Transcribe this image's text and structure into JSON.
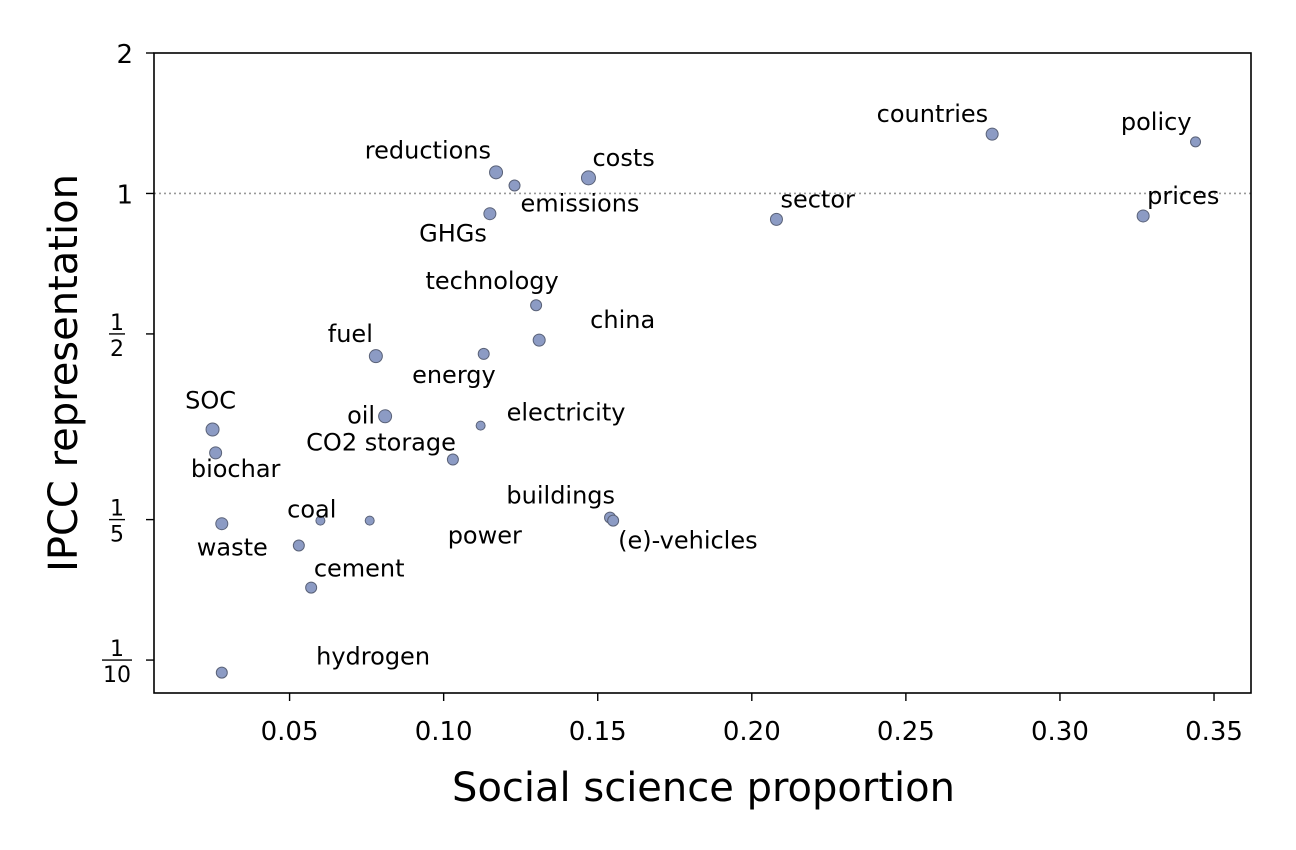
{
  "chart_data": {
    "type": "scatter",
    "xlabel": "Social science proportion",
    "ylabel": "IPCC representation",
    "xlim": [
      0.006,
      0.362
    ],
    "ylim": [
      0.085,
      2.0
    ],
    "y_scale": "log",
    "x_ticks": [
      {
        "value": 0.05,
        "label": "0.05"
      },
      {
        "value": 0.1,
        "label": "0.10"
      },
      {
        "value": 0.15,
        "label": "0.15"
      },
      {
        "value": 0.2,
        "label": "0.20"
      },
      {
        "value": 0.25,
        "label": "0.25"
      },
      {
        "value": 0.3,
        "label": "0.30"
      },
      {
        "value": 0.35,
        "label": "0.35"
      }
    ],
    "y_ticks": [
      {
        "value": 2,
        "label": "2"
      },
      {
        "value": 1,
        "label": "1"
      },
      {
        "value": 0.5,
        "num": "1",
        "den": "2"
      },
      {
        "value": 0.2,
        "num": "1",
        "den": "5"
      },
      {
        "value": 0.1,
        "num": "1",
        "den": "10"
      }
    ],
    "reference_line": {
      "y": 1,
      "style": "dotted",
      "color": "#999999"
    },
    "point_color": "#8c9bc4",
    "point_edge_color": "#5a6278",
    "points": [
      {
        "label": "countries",
        "x": 0.278,
        "y": 1.34,
        "size": 6,
        "anchor": "end",
        "ldx": -4,
        "ldy": -12
      },
      {
        "label": "policy",
        "x": 0.344,
        "y": 1.29,
        "size": 5,
        "anchor": "end",
        "ldx": -4,
        "ldy": -12
      },
      {
        "label": "reductions",
        "x": 0.117,
        "y": 1.11,
        "size": 6.5,
        "anchor": "end",
        "ldx": -5,
        "ldy": -14
      },
      {
        "label": "costs",
        "x": 0.147,
        "y": 1.08,
        "size": 7,
        "anchor": "start",
        "ldx": 4,
        "ldy": -12
      },
      {
        "label": "emissions",
        "x": 0.123,
        "y": 1.04,
        "size": 5.5,
        "anchor": "start",
        "ldx": 6,
        "ldy": 26
      },
      {
        "label": "sector",
        "x": 0.208,
        "y": 0.88,
        "size": 6,
        "anchor": "start",
        "ldx": 4,
        "ldy": -12
      },
      {
        "label": "prices",
        "x": 0.327,
        "y": 0.895,
        "size": 6,
        "anchor": "start",
        "ldx": 4,
        "ldy": -12
      },
      {
        "label": "GHGs",
        "x": 0.115,
        "y": 0.905,
        "size": 6,
        "anchor": "end",
        "ldx": -3,
        "ldy": 28
      },
      {
        "label": "technology",
        "x": 0.13,
        "y": 0.576,
        "size": 5.5,
        "anchor": "middle",
        "ldx": -44,
        "ldy": -16
      },
      {
        "label": "china",
        "x": 0.131,
        "y": 0.485,
        "size": 6,
        "anchor": "start",
        "ldx": 51,
        "ldy": -12
      },
      {
        "label": "fuel",
        "x": 0.078,
        "y": 0.448,
        "size": 6.5,
        "anchor": "end",
        "ldx": -3,
        "ldy": -14
      },
      {
        "label": "energy",
        "x": 0.113,
        "y": 0.453,
        "size": 5.5,
        "anchor": "end",
        "ldx": 12,
        "ldy": 29
      },
      {
        "label": "SOC",
        "x": 0.025,
        "y": 0.312,
        "size": 6.5,
        "anchor": "middle",
        "ldx": -2,
        "ldy": -21
      },
      {
        "label": "oil",
        "x": 0.081,
        "y": 0.333,
        "size": 6.5,
        "anchor": "end",
        "ldx": -10,
        "ldy": 7
      },
      {
        "label": "electricity",
        "x": 0.112,
        "y": 0.318,
        "size": 4.5,
        "anchor": "start",
        "ldx": 26,
        "ldy": -5
      },
      {
        "label": "CO2 storage",
        "x": 0.103,
        "y": 0.269,
        "size": 5.5,
        "anchor": "end",
        "ldx": 3,
        "ldy": -9
      },
      {
        "label": "biochar",
        "x": 0.026,
        "y": 0.278,
        "size": 6,
        "anchor": "middle",
        "ldx": 20,
        "ldy": 24
      },
      {
        "label": "buildings",
        "x": 0.154,
        "y": 0.202,
        "size": 5.5,
        "anchor": "end",
        "ldx": 5,
        "ldy": -14
      },
      {
        "label": "coal",
        "x": 0.06,
        "y": 0.199,
        "size": 4.5,
        "anchor": "end",
        "ldx": 16,
        "ldy": -3
      },
      {
        "label": "power",
        "x": 0.076,
        "y": 0.199,
        "size": 4.5,
        "anchor": "start",
        "ldx": 78,
        "ldy": 23
      },
      {
        "label": "(e)-vehicles",
        "x": 0.155,
        "y": 0.199,
        "size": 5.5,
        "anchor": "start",
        "ldx": 5,
        "ldy": 28
      },
      {
        "label": "waste",
        "x": 0.028,
        "y": 0.196,
        "size": 6,
        "anchor": "start",
        "ldx": -25,
        "ldy": 32
      },
      {
        "label": "cement",
        "x": 0.053,
        "y": 0.176,
        "size": 5.5,
        "anchor": "start",
        "ldx": 15,
        "ldy": 31
      },
      {
        "label": "hydrogen",
        "x": 0.057,
        "y": 0.143,
        "size": 5.5,
        "anchor": "start",
        "ldx": 5,
        "ldy": 77
      },
      {
        "label": "",
        "x": 0.028,
        "y": 0.094,
        "size": 5.5,
        "anchor": "start",
        "ldx": 0,
        "ldy": 0
      }
    ]
  }
}
